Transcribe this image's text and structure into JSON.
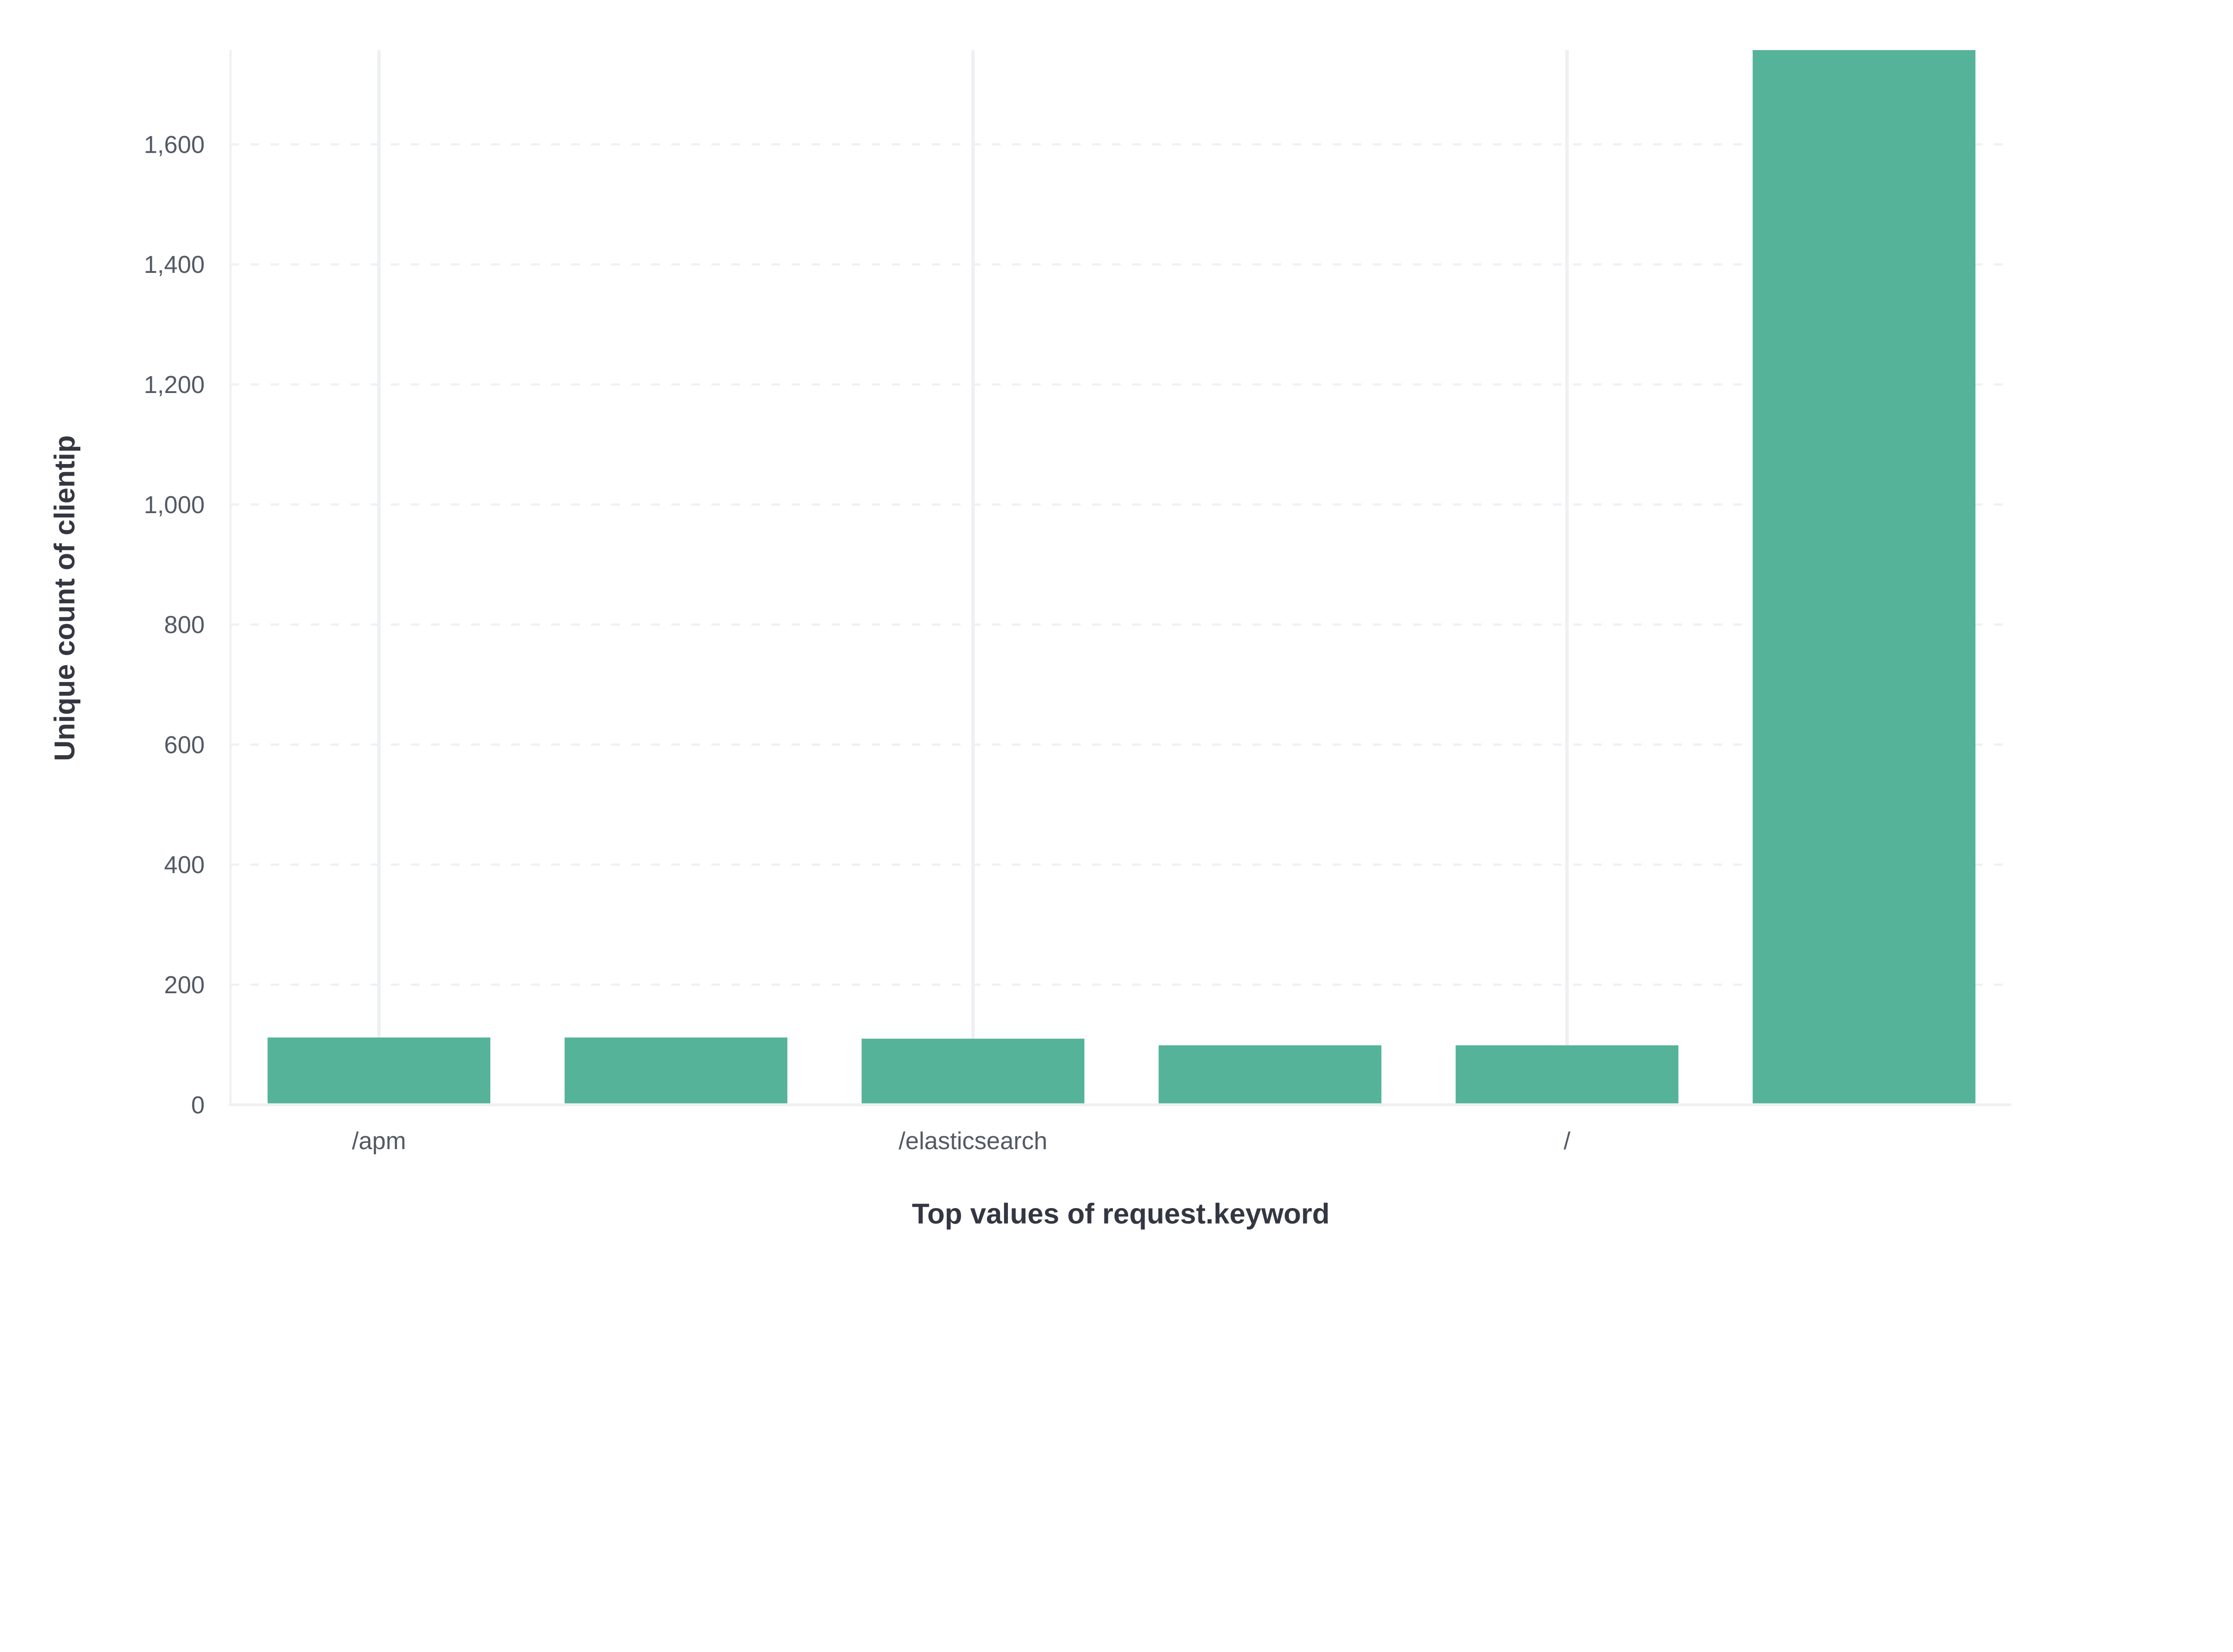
{
  "chart_data": {
    "type": "bar",
    "categories": [
      "/apm",
      "",
      "/elasticsearch",
      "",
      "/",
      ""
    ],
    "values": [
      112,
      112,
      110,
      99,
      99,
      1757
    ],
    "xlabel": "Top values of request.keyword",
    "ylabel": "Unique count of clientip",
    "ylim": [
      0,
      1757
    ],
    "yticks": [
      0,
      200,
      400,
      600,
      800,
      1000,
      1200,
      1400,
      1600
    ],
    "ytick_labels": [
      "0",
      "200",
      "400",
      "600",
      "800",
      "1,000",
      "1,200",
      "1,400",
      "1,600"
    ],
    "grid": true,
    "legend": "none",
    "bar_color": "#54B399"
  }
}
